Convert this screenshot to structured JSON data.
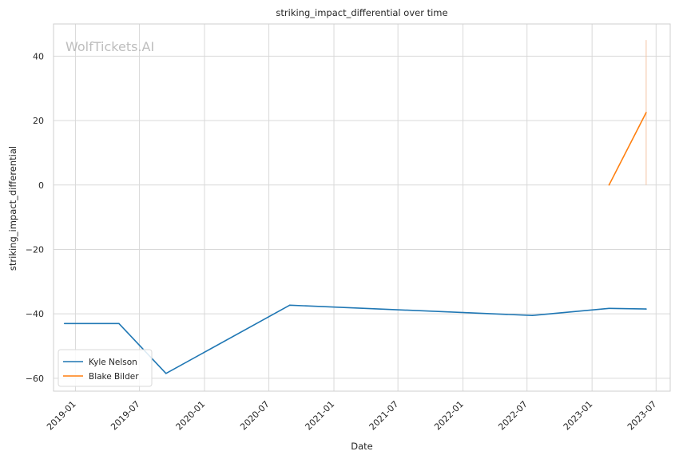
{
  "chart_data": {
    "type": "line",
    "title": "striking_impact_differential over time",
    "xlabel": "Date",
    "ylabel": "striking_impact_differential",
    "watermark": "WolfTickets.AI",
    "x_ticks": [
      "2019-01",
      "2019-07",
      "2020-01",
      "2020-07",
      "2021-01",
      "2021-07",
      "2022-01",
      "2022-07",
      "2023-01",
      "2023-07"
    ],
    "y_ticks": [
      40,
      20,
      0,
      -20,
      -40,
      -60
    ],
    "y_tick_labels": [
      "40",
      "20",
      "0",
      "−20",
      "−40",
      "−60"
    ],
    "xlim": [
      "2018-10-31",
      "2023-08-10"
    ],
    "ylim": [
      -64,
      50
    ],
    "grid": true,
    "legend_position": "lower-left",
    "series": [
      {
        "name": "Kyle Nelson",
        "color": "#1f77b4",
        "points": [
          {
            "x": "2018-12-01",
            "y": -43
          },
          {
            "x": "2019-05-04",
            "y": -43
          },
          {
            "x": "2019-09-14",
            "y": -58.5
          },
          {
            "x": "2020-08-29",
            "y": -37.3
          },
          {
            "x": "2022-07-16",
            "y": -40.5
          },
          {
            "x": "2023-02-18",
            "y": -38.3
          },
          {
            "x": "2023-06-03",
            "y": -38.5
          }
        ]
      },
      {
        "name": "Blake Bilder",
        "color": "#ff7f0e",
        "points": [
          {
            "x": "2023-02-18",
            "y": 0
          },
          {
            "x": "2023-06-03",
            "y": 22.5
          }
        ]
      }
    ],
    "marker_line": {
      "x": "2023-06-03",
      "y_from": 0,
      "y_to": 45,
      "color": "#f5c6a5"
    }
  }
}
